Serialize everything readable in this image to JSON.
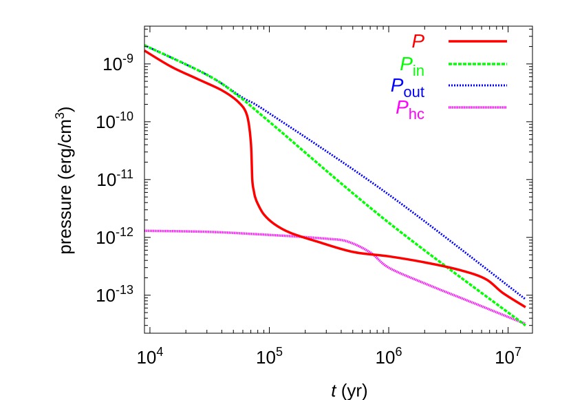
{
  "chart_data": {
    "type": "line",
    "xscale": "log",
    "yscale": "log",
    "xlim": [
      9000,
      16000000
    ],
    "ylim": [
      2.2e-14,
      4.5e-09
    ],
    "xlabel": {
      "italic": "t",
      "rest": " (yr)"
    },
    "ylabel": {
      "main": "pressure (erg/cm",
      "sup": "3",
      "close": ")"
    },
    "xticks": [
      {
        "value": 10000,
        "base": "10",
        "exp": "4"
      },
      {
        "value": 100000,
        "base": "10",
        "exp": "5"
      },
      {
        "value": 1000000,
        "base": "10",
        "exp": "6"
      },
      {
        "value": 10000000,
        "base": "10",
        "exp": "7"
      }
    ],
    "yticks": [
      {
        "value": 1e-09,
        "base": "10",
        "exp": "-9"
      },
      {
        "value": 1e-10,
        "base": "10",
        "exp": "-10"
      },
      {
        "value": 1e-11,
        "base": "10",
        "exp": "-11"
      },
      {
        "value": 1e-12,
        "base": "10",
        "exp": "-12"
      },
      {
        "value": 1e-13,
        "base": "10",
        "exp": "-13"
      }
    ],
    "grid": false,
    "legend_position": "top-right",
    "series": [
      {
        "name": "P",
        "sub": "",
        "color": "#ff0000",
        "dash": "solid",
        "x": [
          9000,
          15000,
          25000,
          40000,
          55000,
          65000,
          70000,
          72000,
          74000,
          76000,
          80000,
          90000,
          110000,
          150000,
          250000,
          500000,
          1000000,
          2000000,
          4000000,
          6500000,
          9000000,
          14000000
        ],
        "y": [
          1.7e-09,
          9e-10,
          5.5e-10,
          3.5e-10,
          2.2e-10,
          1.3e-10,
          4.5e-11,
          1e-11,
          6.5e-12,
          5e-12,
          3.8e-12,
          2.5e-12,
          1.7e-12,
          1.2e-12,
          8.5e-13,
          5.6e-13,
          4.7e-13,
          3.7e-13,
          2.7e-13,
          1.9e-13,
          1.1e-13,
          6.2e-14
        ]
      },
      {
        "name": "P",
        "sub": "in",
        "color": "#00ff00",
        "dash": "dashed",
        "x": [
          9000,
          30000,
          55000,
          100000,
          1000000,
          14000000
        ],
        "y": [
          2.1e-09,
          6.5e-10,
          2.8e-10,
          1e-10,
          1.8e-12,
          3e-14
        ]
      },
      {
        "name": "P",
        "sub": "out",
        "color": "#0000ff",
        "dash": "dotted",
        "x": [
          9000,
          30000,
          60000,
          100000,
          1000000,
          14000000
        ],
        "y": [
          2.1e-09,
          6.5e-10,
          2.6e-10,
          1.4e-10,
          5.5e-12,
          8.5e-14
        ]
      },
      {
        "name": "P",
        "sub": "hc",
        "color": "#ff00ff",
        "dash": "dotted-thick",
        "x": [
          9000,
          30000,
          70000,
          150000,
          300000,
          450000,
          700000,
          1000000,
          2000000,
          5000000,
          10000000,
          14000000
        ],
        "y": [
          1.3e-12,
          1.25e-12,
          1.15e-12,
          1.05e-12,
          9.5e-13,
          8.5e-13,
          5.5e-13,
          3e-13,
          1.6e-13,
          7.5e-14,
          4.2e-14,
          3.2e-14
        ]
      }
    ]
  }
}
